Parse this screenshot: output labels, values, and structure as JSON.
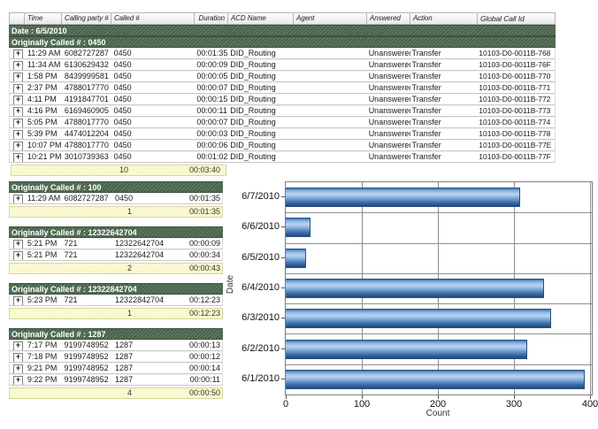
{
  "table": {
    "columns": [
      "",
      "Time",
      "Calling party #",
      "Called #",
      "Duration",
      "ACD Name",
      "Agent",
      "Answered",
      "Action",
      "Global Call Id"
    ],
    "date_label": "Date : 6/5/2010",
    "group_label": "Originally Called # : 0450",
    "expander_glyph": "+",
    "rows": [
      {
        "time": "11:29 AM",
        "calling": "6082727287",
        "called": "0450",
        "duration": "00:01:35",
        "acd": "DID_Routing",
        "agent": "",
        "answered": "Unanswered",
        "action": "Transfer",
        "global_id": "10103-D0-0011B-768"
      },
      {
        "time": "11:34 AM",
        "calling": "6130629432",
        "called": "0450",
        "duration": "00:00:09",
        "acd": "DID_Routing",
        "agent": "",
        "answered": "Unanswered",
        "action": "Transfer",
        "global_id": "10103-D0-0011B-76F"
      },
      {
        "time": "1:58 PM",
        "calling": "8439999581",
        "called": "0450",
        "duration": "00:00:05",
        "acd": "DID_Routing",
        "agent": "",
        "answered": "Unanswered",
        "action": "Transfer",
        "global_id": "10103-D0-0011B-770"
      },
      {
        "time": "2:37 PM",
        "calling": "4788017770",
        "called": "0450",
        "duration": "00:00:07",
        "acd": "DID_Routing",
        "agent": "",
        "answered": "Unanswered",
        "action": "Transfer",
        "global_id": "10103-D0-0011B-771"
      },
      {
        "time": "4:11 PM",
        "calling": "4191847701",
        "called": "0450",
        "duration": "00:00:15",
        "acd": "DID_Routing",
        "agent": "",
        "answered": "Unanswered",
        "action": "Transfer",
        "global_id": "10103-D0-0011B-772"
      },
      {
        "time": "4:16 PM",
        "calling": "6169460905",
        "called": "0450",
        "duration": "00:00:11",
        "acd": "DID_Routing",
        "agent": "",
        "answered": "Unanswered",
        "action": "Transfer",
        "global_id": "10103-D0-0011B-773"
      },
      {
        "time": "5:05 PM",
        "calling": "4788017770",
        "called": "0450",
        "duration": "00:00:07",
        "acd": "DID_Routing",
        "agent": "",
        "answered": "Unanswered",
        "action": "Transfer",
        "global_id": "10103-D0-0011B-774"
      },
      {
        "time": "5:39 PM",
        "calling": "4474012204",
        "called": "0450",
        "duration": "00:00:03",
        "acd": "DID_Routing",
        "agent": "",
        "answered": "Unanswered",
        "action": "Transfer",
        "global_id": "10103-D0-0011B-778"
      },
      {
        "time": "10:07 PM",
        "calling": "4788017770",
        "called": "0450",
        "duration": "00:00:06",
        "acd": "DID_Routing",
        "agent": "",
        "answered": "Unanswered",
        "action": "Transfer",
        "global_id": "10103-D0-0011B-77E"
      },
      {
        "time": "10:21 PM",
        "calling": "3010739363",
        "called": "0450",
        "duration": "00:01:02",
        "acd": "DID_Routing",
        "agent": "",
        "answered": "Unanswered",
        "action": "Transfer",
        "global_id": "10103-D0-0011B-77F"
      }
    ],
    "summary": {
      "count": "10",
      "duration": "00:03:40"
    }
  },
  "groups": [
    {
      "title": "Originally Called # : 100",
      "rows": [
        [
          "11:29 AM",
          "6082727287",
          "0450",
          "00:01:35"
        ]
      ],
      "summary": {
        "count": "1",
        "duration": "00:01:35"
      }
    },
    {
      "title": "Originally Called # : 12322642704",
      "rows": [
        [
          "5:21 PM",
          "721",
          "12322642704",
          "00:00:09"
        ],
        [
          "5:21 PM",
          "721",
          "12322642704",
          "00:00:34"
        ]
      ],
      "summary": {
        "count": "2",
        "duration": "00:00:43"
      }
    },
    {
      "title": "Originally Called # : 12322842704",
      "rows": [
        [
          "5:23 PM",
          "721",
          "12322842704",
          "00:12:23"
        ]
      ],
      "summary": {
        "count": "1",
        "duration": "00:12:23"
      }
    },
    {
      "title": "Originally Called # : 1287",
      "rows": [
        [
          "7:17 PM",
          "9199748952",
          "1287",
          "00:00:13"
        ],
        [
          "7:18 PM",
          "9199748952",
          "1287",
          "00:00:12"
        ],
        [
          "9:21 PM",
          "9199748952",
          "1287",
          "00:00:14"
        ],
        [
          "9:22 PM",
          "9199748952",
          "1287",
          "00:00:11"
        ]
      ],
      "summary": {
        "count": "4",
        "duration": "00:00:50"
      }
    }
  ],
  "chart_data": {
    "type": "bar",
    "orientation": "horizontal",
    "categories": [
      "6/7/2010",
      "6/6/2010",
      "6/5/2010",
      "6/4/2010",
      "6/3/2010",
      "6/2/2010",
      "6/1/2010"
    ],
    "values": [
      308,
      33,
      27,
      340,
      349,
      318,
      393
    ],
    "title": "",
    "xlabel": "Count",
    "ylabel": "Date",
    "xlim": [
      0,
      400
    ],
    "xticks": [
      0,
      100,
      200,
      300,
      400
    ],
    "grid": true,
    "legend": "none"
  },
  "colors": {
    "group_header_bg": "#4e6b50",
    "summary_bg": "#f7f7c3",
    "bar_light": "#b9d3ef",
    "bar_dark": "#1f4a7e",
    "grid_line": "#8f8f8f"
  }
}
